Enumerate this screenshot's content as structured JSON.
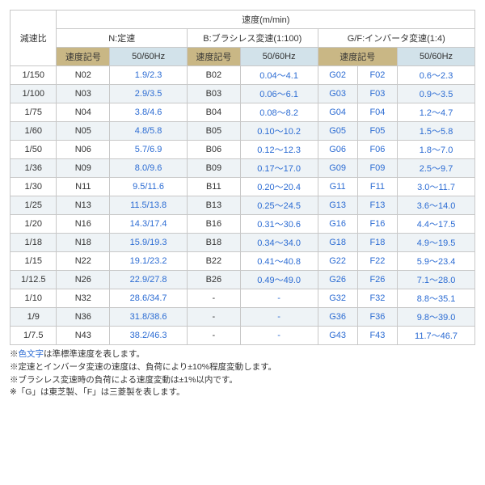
{
  "headers": {
    "ratio": "減速比",
    "speed": "速度(m/min)",
    "n": "N:定速",
    "b": "B:ブラシレス変速(1:100)",
    "gf": "G/F:インバータ変速(1:4)",
    "code": "速度記号",
    "hz": "50/60Hz"
  },
  "rows": [
    {
      "r": "1/150",
      "n": "N02",
      "nhz": "1.9/2.3",
      "b": "B02",
      "bhz": "0.04～4.1",
      "g": "G02",
      "f": "F02",
      "gfhz": "0.6～2.3"
    },
    {
      "r": "1/100",
      "n": "N03",
      "nhz": "2.9/3.5",
      "b": "B03",
      "bhz": "0.06～6.1",
      "g": "G03",
      "f": "F03",
      "gfhz": "0.9～3.5"
    },
    {
      "r": "1/75",
      "n": "N04",
      "nhz": "3.8/4.6",
      "b": "B04",
      "bhz": "0.08～8.2",
      "g": "G04",
      "f": "F04",
      "gfhz": "1.2～4.7"
    },
    {
      "r": "1/60",
      "n": "N05",
      "nhz": "4.8/5.8",
      "b": "B05",
      "bhz": "0.10～10.2",
      "g": "G05",
      "f": "F05",
      "gfhz": "1.5～5.8"
    },
    {
      "r": "1/50",
      "n": "N06",
      "nhz": "5.7/6.9",
      "b": "B06",
      "bhz": "0.12～12.3",
      "g": "G06",
      "f": "F06",
      "gfhz": "1.8～7.0"
    },
    {
      "r": "1/36",
      "n": "N09",
      "nhz": "8.0/9.6",
      "b": "B09",
      "bhz": "0.17～17.0",
      "g": "G09",
      "f": "F09",
      "gfhz": "2.5～9.7"
    },
    {
      "r": "1/30",
      "n": "N11",
      "nhz": "9.5/11.6",
      "b": "B11",
      "bhz": "0.20～20.4",
      "g": "G11",
      "f": "F11",
      "gfhz": "3.0～11.7"
    },
    {
      "r": "1/25",
      "n": "N13",
      "nhz": "11.5/13.8",
      "b": "B13",
      "bhz": "0.25～24.5",
      "g": "G13",
      "f": "F13",
      "gfhz": "3.6～14.0"
    },
    {
      "r": "1/20",
      "n": "N16",
      "nhz": "14.3/17.4",
      "b": "B16",
      "bhz": "0.31～30.6",
      "g": "G16",
      "f": "F16",
      "gfhz": "4.4～17.5"
    },
    {
      "r": "1/18",
      "n": "N18",
      "nhz": "15.9/19.3",
      "b": "B18",
      "bhz": "0.34～34.0",
      "g": "G18",
      "f": "F18",
      "gfhz": "4.9～19.5"
    },
    {
      "r": "1/15",
      "n": "N22",
      "nhz": "19.1/23.2",
      "b": "B22",
      "bhz": "0.41～40.8",
      "g": "G22",
      "f": "F22",
      "gfhz": "5.9～23.4"
    },
    {
      "r": "1/12.5",
      "n": "N26",
      "nhz": "22.9/27.8",
      "b": "B26",
      "bhz": "0.49～49.0",
      "g": "G26",
      "f": "F26",
      "gfhz": "7.1～28.0"
    },
    {
      "r": "1/10",
      "n": "N32",
      "nhz": "28.6/34.7",
      "b": "-",
      "bhz": "-",
      "g": "G32",
      "f": "F32",
      "gfhz": "8.8～35.1"
    },
    {
      "r": "1/9",
      "n": "N36",
      "nhz": "31.8/38.6",
      "b": "-",
      "bhz": "-",
      "g": "G36",
      "f": "F36",
      "gfhz": "9.8～39.0"
    },
    {
      "r": "1/7.5",
      "n": "N43",
      "nhz": "38.2/46.3",
      "b": "-",
      "bhz": "-",
      "g": "G43",
      "f": "F43",
      "gfhz": "11.7～46.7"
    }
  ],
  "notes": {
    "n1a": "※",
    "n1b": "色文字",
    "n1c": "は準標準速度を表します。",
    "n2": "※定速とインバータ変速の速度は、負荷により±10%程度変動します。",
    "n3": "※ブラシレス変速時の負荷による速度変動は±1%以内です。",
    "n4": "※「G」は東芝製、「F」は三菱製を表します。"
  }
}
